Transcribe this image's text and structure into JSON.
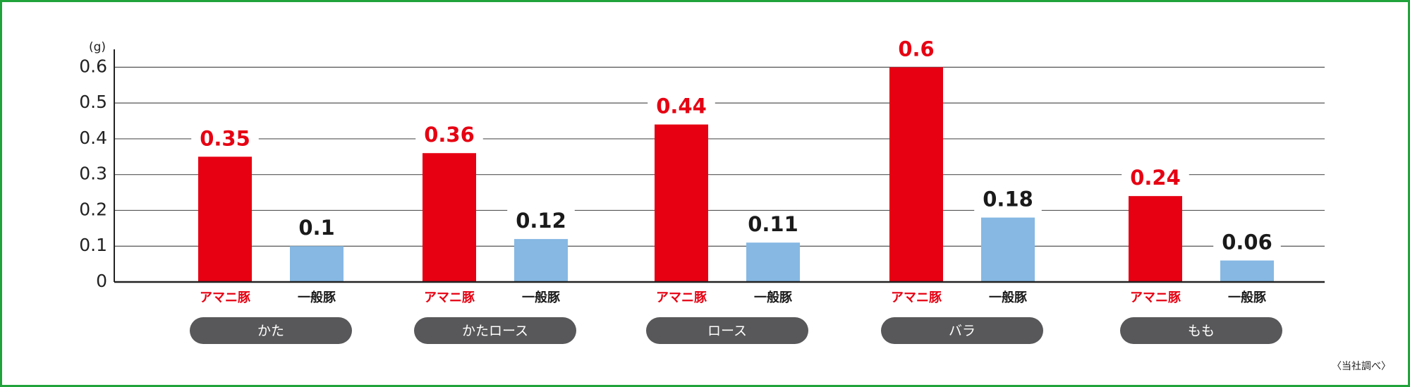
{
  "chart_data": {
    "type": "bar",
    "y_axis_label": "(g)",
    "note": "〈当社調べ〉",
    "categories": [
      "かた",
      "かたロース",
      "ロース",
      "バラ",
      "もも"
    ],
    "series": [
      {
        "name": "アマニ豚",
        "color": "#e60012",
        "label_color": "#e60012",
        "values": [
          0.35,
          0.36,
          0.44,
          0.6,
          0.24
        ]
      },
      {
        "name": "一般豚",
        "color": "#86b8e3",
        "label_color": "#1a1a1a",
        "values": [
          0.1,
          0.12,
          0.11,
          0.18,
          0.06
        ]
      }
    ],
    "ylim": [
      0,
      0.65
    ],
    "yticks": [
      0,
      0.1,
      0.2,
      0.3,
      0.4,
      0.5,
      0.6
    ],
    "grid": true
  }
}
